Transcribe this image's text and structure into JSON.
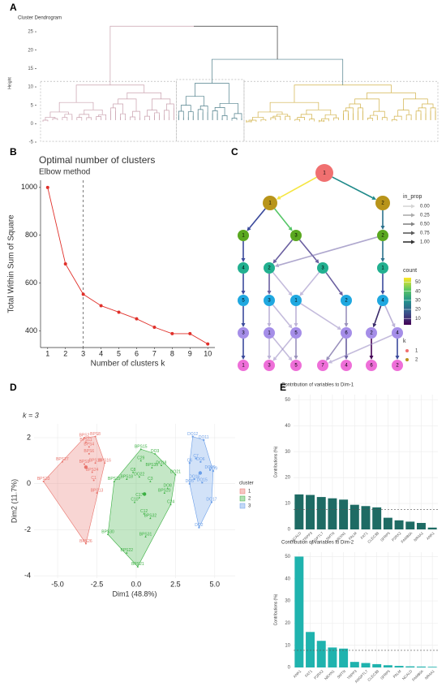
{
  "chart_data": [
    {
      "type": "dendrogram",
      "panel": "A",
      "title": "Cluster Dendrogram",
      "ylabel": "Height",
      "ylim": [
        -5,
        27
      ],
      "yticks": [
        -5,
        0,
        5,
        10,
        15,
        20,
        25
      ],
      "clusters": [
        {
          "name": "1",
          "color": "#c9a0ae",
          "n": 28,
          "height": 10.5
        },
        {
          "name": "2",
          "color": "#4f7f8a",
          "n": 14,
          "height": 11
        },
        {
          "name": "3",
          "color": "#d2b24a",
          "n": 40,
          "height": 10.5
        }
      ],
      "subroot_height": 17.5,
      "root_height": 26.5,
      "root_color": "#333333"
    },
    {
      "type": "line",
      "panel": "B",
      "title": "Optimal number of clusters",
      "subtitle": "Elbow method",
      "xlabel": "Number of clusters k",
      "ylabel": "Total Within Sum of Square",
      "x": [
        1,
        2,
        3,
        4,
        5,
        6,
        7,
        8,
        9,
        10
      ],
      "values": [
        1000,
        680,
        553,
        505,
        478,
        450,
        415,
        388,
        388,
        345
      ],
      "color": "#e0302a",
      "xlim": [
        0.6,
        10.4
      ],
      "xticks": [
        1,
        2,
        3,
        4,
        5,
        6,
        7,
        8,
        9,
        10
      ],
      "ylim": [
        330,
        1030
      ],
      "yticks": [
        400,
        600,
        800,
        1000
      ],
      "vline": 3
    },
    {
      "type": "tree",
      "panel": "C",
      "nodes": [
        {
          "label": "1",
          "row": 0,
          "color": "#f07070"
        },
        {
          "label": "1",
          "row": 1,
          "color": "#b8941a"
        },
        {
          "label": "2",
          "row": 1,
          "color": "#b8941a"
        },
        {
          "label": "1",
          "row": 2,
          "color": "#5aa820"
        },
        {
          "label": "3",
          "row": 2,
          "color": "#5aa820"
        },
        {
          "label": "2",
          "row": 2,
          "color": "#5aa820"
        },
        {
          "label": "4",
          "row": 3,
          "color": "#22b090"
        },
        {
          "label": "2",
          "row": 3,
          "color": "#22b090"
        },
        {
          "label": "3",
          "row": 3,
          "color": "#22b090"
        },
        {
          "label": "1",
          "row": 3,
          "color": "#22b090"
        },
        {
          "label": "5",
          "row": 4,
          "color": "#20a8e0"
        },
        {
          "label": "3",
          "row": 4,
          "color": "#20a8e0"
        },
        {
          "label": "1",
          "row": 4,
          "color": "#20a8e0"
        },
        {
          "label": "2",
          "row": 4,
          "color": "#20a8e0"
        },
        {
          "label": "4",
          "row": 4,
          "color": "#20a8e0"
        },
        {
          "label": "3",
          "row": 5,
          "color": "#a58ee8"
        },
        {
          "label": "1",
          "row": 5,
          "color": "#a58ee8"
        },
        {
          "label": "5",
          "row": 5,
          "color": "#a58ee8"
        },
        {
          "label": "6",
          "row": 5,
          "color": "#a58ee8"
        },
        {
          "label": "2",
          "row": 5,
          "color": "#a58ee8"
        },
        {
          "label": "4",
          "row": 5,
          "color": "#a58ee8"
        },
        {
          "label": "1",
          "row": 6,
          "color": "#ee6fd8"
        },
        {
          "label": "3",
          "row": 6,
          "color": "#ee6fd8"
        },
        {
          "label": "5",
          "row": 6,
          "color": "#ee6fd8"
        },
        {
          "label": "7",
          "row": 6,
          "color": "#ee6fd8"
        },
        {
          "label": "4",
          "row": 6,
          "color": "#ee6fd8"
        },
        {
          "label": "6",
          "row": 6,
          "color": "#ee6fd8"
        },
        {
          "label": "2",
          "row": 6,
          "color": "#ee6fd8"
        }
      ],
      "edges": [
        {
          "from": 0,
          "to": 1,
          "in_prop": 1.0,
          "color": "#f5e642"
        },
        {
          "from": 0,
          "to": 2,
          "in_prop": 1.0,
          "color": "#1f8a8a"
        },
        {
          "from": 1,
          "to": 3,
          "in_prop": 1.0,
          "color": "#3b4a9c"
        },
        {
          "from": 1,
          "to": 4,
          "in_prop": 1.0,
          "color": "#55c667"
        },
        {
          "from": 2,
          "to": 5,
          "in_prop": 1.0,
          "color": "#2c728e"
        },
        {
          "from": 3,
          "to": 6,
          "in_prop": 1.0,
          "color": "#3b4a9c"
        },
        {
          "from": 4,
          "to": 7,
          "in_prop": 1.0,
          "color": "#6a5fa0"
        },
        {
          "from": 4,
          "to": 8,
          "in_prop": 1.0,
          "color": "#6a5fa0"
        },
        {
          "from": 5,
          "to": 7,
          "in_prop": 0.6,
          "color": "#8a7fb8"
        },
        {
          "from": 5,
          "to": 9,
          "in_prop": 1.0,
          "color": "#2c728e"
        },
        {
          "from": 6,
          "to": 10,
          "in_prop": 1.0,
          "color": "#3b4a9c"
        },
        {
          "from": 7,
          "to": 11,
          "in_prop": 1.0,
          "color": "#6a5fa0"
        },
        {
          "from": 7,
          "to": 12,
          "in_prop": 0.5,
          "color": "#9d8fc5"
        },
        {
          "from": 8,
          "to": 12,
          "in_prop": 0.5,
          "color": "#9d8fc5"
        },
        {
          "from": 8,
          "to": 13,
          "in_prop": 1.0,
          "color": "#6a5fa0"
        },
        {
          "from": 9,
          "to": 14,
          "in_prop": 1.0,
          "color": "#3b4a9c"
        },
        {
          "from": 10,
          "to": 15,
          "in_prop": 1.0,
          "color": "#3b4a9c"
        },
        {
          "from": 11,
          "to": 16,
          "in_prop": 0.6,
          "color": "#9d8fc5"
        },
        {
          "from": 11,
          "to": 17,
          "in_prop": 0.5,
          "color": "#9d8fc5"
        },
        {
          "from": 12,
          "to": 17,
          "in_prop": 0.6,
          "color": "#9d8fc5"
        },
        {
          "from": 12,
          "to": 18,
          "in_prop": 0.5,
          "color": "#9d8fc5"
        },
        {
          "from": 13,
          "to": 18,
          "in_prop": 0.7,
          "color": "#7b6fa8"
        },
        {
          "from": 14,
          "to": 19,
          "in_prop": 0.9,
          "color": "#2a1a5e"
        },
        {
          "from": 14,
          "to": 20,
          "in_prop": 0.6,
          "color": "#9d8fc5"
        },
        {
          "from": 15,
          "to": 21,
          "in_prop": 1.0,
          "color": "#3b4a9c"
        },
        {
          "from": 16,
          "to": 22,
          "in_prop": 0.6,
          "color": "#9d8fc5"
        },
        {
          "from": 17,
          "to": 22,
          "in_prop": 0.5,
          "color": "#9d8fc5"
        },
        {
          "from": 17,
          "to": 23,
          "in_prop": 0.7,
          "color": "#7b6fa8"
        },
        {
          "from": 16,
          "to": 23,
          "in_prop": 0.5,
          "color": "#9d8fc5"
        },
        {
          "from": 18,
          "to": 24,
          "in_prop": 0.7,
          "color": "#7b6fa8"
        },
        {
          "from": 18,
          "to": 25,
          "in_prop": 1.0,
          "color": "#6a5fa0"
        },
        {
          "from": 19,
          "to": 26,
          "in_prop": 1.0,
          "color": "#440154"
        },
        {
          "from": 20,
          "to": 27,
          "in_prop": 1.0,
          "color": "#3b4a9c"
        },
        {
          "from": 20,
          "to": 24,
          "in_prop": 0.5,
          "color": "#9d8fc5"
        }
      ],
      "in_prop_title": "in_prop",
      "in_prop_ticks": [
        {
          "value": 0,
          "label": "0.00"
        },
        {
          "value": 0.25,
          "label": "0.25"
        },
        {
          "value": 0.5,
          "label": "0.50"
        },
        {
          "value": 0.75,
          "label": "0.75"
        },
        {
          "value": 1,
          "label": "1.00"
        }
      ],
      "count_title": "count",
      "count_lim": [
        3,
        55
      ],
      "count_ticks": [
        10,
        20,
        30,
        40,
        50
      ],
      "k_title": "k",
      "k_levels": [
        {
          "name": "1",
          "color": "#f07070"
        },
        {
          "name": "2",
          "color": "#b8941a"
        }
      ]
    },
    {
      "type": "scatter",
      "panel": "D",
      "title": "k = 3",
      "xlabel": "Dim1 (48.8%)",
      "ylabel": "Dim2 (11.7%)",
      "xlim": [
        -6.5,
        6.3
      ],
      "xticks": [
        {
          "value": -5,
          "label": "-5.0"
        },
        {
          "value": -2.5,
          "label": "-2.5"
        },
        {
          "value": 0,
          "label": "0.0"
        },
        {
          "value": 2.5,
          "label": "2.5"
        },
        {
          "value": 5,
          "label": "5.0"
        }
      ],
      "ylim": [
        -4.1,
        2.6
      ],
      "yticks": [
        -4,
        -2,
        0,
        2
      ],
      "legend_title": "cluster",
      "series": [
        {
          "name": "1",
          "color": "#e8746c",
          "labels": [
            "BPS2",
            "BPS8",
            "BPS11",
            "BPS4",
            "BPS6",
            "BPS27",
            "BPS9",
            "BPS10",
            "BPS16",
            "BPS24",
            "BPS33",
            "C1",
            "BPS13",
            "BPS26"
          ],
          "x": [
            -3.3,
            -2.6,
            -3.2,
            -3.0,
            -3.0,
            -4.7,
            -3.3,
            -2.6,
            -2.0,
            -2.8,
            -5.9,
            -2.7,
            -2.5,
            -3.2
          ],
          "values": [
            2.0,
            2.05,
            1.8,
            1.6,
            1.3,
            0.95,
            0.85,
            0.9,
            0.9,
            0.5,
            0.1,
            0.15,
            -0.4,
            -2.6
          ]
        },
        {
          "name": "2",
          "color": "#3cb043",
          "labels": [
            "BPS15",
            "DO3",
            "C29",
            "DO18",
            "C8",
            "BPS35",
            "DO22",
            "DO21",
            "BPS18",
            "C3",
            "DO8",
            "BPS20",
            "C17",
            "C10",
            "C24",
            "C12",
            "BPS32",
            "BPS31",
            "BPS22",
            "BPS21",
            "BPS19",
            "BPS30"
          ],
          "x": [
            0.3,
            1.2,
            0.3,
            1.6,
            -0.2,
            1.0,
            0.2,
            2.5,
            -0.6,
            0.9,
            2.0,
            1.8,
            0.2,
            -0.1,
            2.2,
            0.5,
            0.9,
            0.6,
            -0.6,
            0.1,
            -1.4,
            -1.8
          ],
          "values": [
            1.5,
            1.3,
            1.0,
            0.8,
            0.5,
            0.7,
            0.3,
            0.4,
            0.2,
            0.1,
            -0.2,
            -0.4,
            -0.6,
            -0.8,
            -0.9,
            -1.3,
            -1.5,
            -2.3,
            -3.0,
            -3.6,
            0.1,
            -2.2
          ]
        },
        {
          "name": "3",
          "color": "#6a9ee8",
          "labels": [
            "DO12",
            "DO11",
            "C7",
            "DO6",
            "C6",
            "DO20",
            "DO9",
            "DO16",
            "DO15",
            "DO5",
            "DO17",
            "DO2"
          ],
          "x": [
            3.6,
            4.3,
            3.8,
            4.1,
            3.4,
            4.7,
            4.9,
            3.7,
            4.2,
            3.4,
            4.8,
            4.0
          ],
          "values": [
            2.05,
            1.9,
            1.1,
            0.95,
            0.9,
            0.6,
            0.55,
            0.2,
            0.05,
            0.0,
            -0.8,
            -1.9
          ]
        }
      ]
    },
    {
      "type": "bar",
      "panel": "E",
      "title": "Contribution of variables to Dim-1",
      "ylabel": "Contributions (%)",
      "categories": [
        "NCALD",
        "TRPP3",
        "ANGPTL7",
        "SMTN",
        "NRXN1",
        "PALM",
        "FAT1",
        "CLEC3B",
        "SFRP5",
        "P2RX2",
        "FAM80A",
        "NR4A1",
        "ANK1"
      ],
      "values": [
        13.5,
        13.3,
        12.5,
        12,
        11.5,
        9.5,
        9,
        8.5,
        4.5,
        3.5,
        3,
        2.5,
        0.7
      ],
      "color": "#1e6b64",
      "ylim": [
        0,
        52
      ],
      "yticks": [
        0,
        10,
        20,
        30,
        40,
        50
      ],
      "reference": 7.7
    },
    {
      "type": "bar",
      "title": "Contribution of variables to Dim-2",
      "ylabel": "Contributions (%)",
      "categories": [
        "ANK1",
        "FAT1",
        "P2RX2",
        "NRXN1",
        "SMTN",
        "TRPP3",
        "ANGPTL7",
        "CLEC3B",
        "SFRP5",
        "PALM",
        "NCALD",
        "FAM80A",
        "NR4A1"
      ],
      "values": [
        50,
        16,
        12,
        9,
        8.5,
        2.5,
        2,
        1.5,
        1,
        0.7,
        0.5,
        0.4,
        0.3
      ],
      "color": "#1fb3ae",
      "ylim": [
        0,
        52
      ],
      "yticks": [
        0,
        10,
        20,
        30,
        40,
        50
      ],
      "reference": 7.7
    }
  ]
}
